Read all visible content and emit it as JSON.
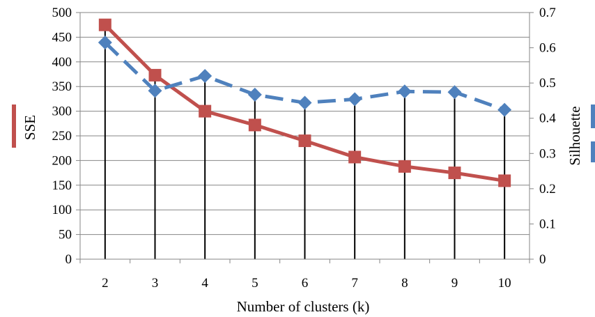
{
  "chart_data": {
    "type": "line",
    "x": [
      2,
      3,
      4,
      5,
      6,
      7,
      8,
      9,
      10
    ],
    "xlabel": "Number of clusters  (k)",
    "ylabel": "SSE",
    "y2label": "Silhouette",
    "ylim": [
      0,
      500
    ],
    "y2lim": [
      0,
      0.7
    ],
    "yticks": [
      "0",
      "50",
      "100",
      "150",
      "200",
      "250",
      "300",
      "350",
      "400",
      "450",
      "500"
    ],
    "y2ticks": [
      "0",
      "0.1",
      "0.2",
      "0.3",
      "0.4",
      "0.5",
      "0.6",
      "0.7"
    ],
    "grid": true,
    "drop_lines": true,
    "series": [
      {
        "axis": "left",
        "color": "#c0504d",
        "marker": "square",
        "line_style": "solid",
        "values": [
          475,
          373,
          300,
          272,
          240,
          207,
          188,
          175,
          159
        ]
      },
      {
        "axis": "right",
        "color": "#4f81bd",
        "marker": "diamond",
        "line_style": "dashed",
        "values": [
          0.615,
          0.478,
          0.52,
          0.467,
          0.444,
          0.454,
          0.476,
          0.474,
          0.424
        ]
      }
    ],
    "legend_swatch_colors": [
      "#c0504d",
      "#4f81bd",
      "#4f81bd"
    ]
  }
}
